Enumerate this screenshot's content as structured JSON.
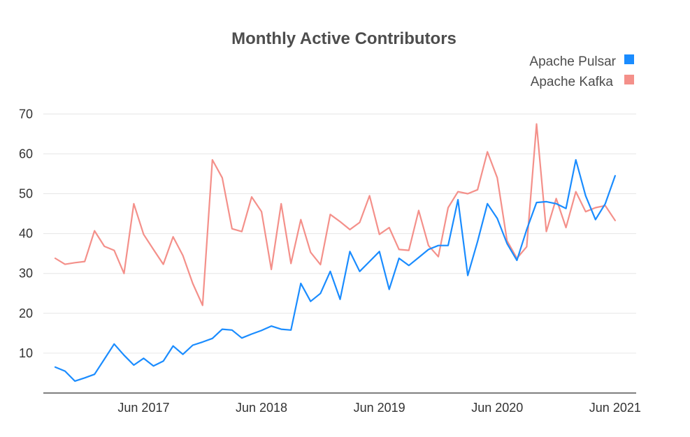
{
  "chart_data": {
    "type": "line",
    "title": "Monthly Active Contributors",
    "xlabel": "",
    "ylabel": "",
    "ylim": [
      0,
      70
    ],
    "yticks": [
      10,
      20,
      30,
      40,
      50,
      60,
      70
    ],
    "x_tick_labels": [
      "Jun 2017",
      "Jun 2018",
      "Jun 2019",
      "Jun 2020",
      "Jun 2021"
    ],
    "grid": true,
    "legend_position": "top-right",
    "x": [
      "2016-09",
      "2016-10",
      "2016-11",
      "2016-12",
      "2017-01",
      "2017-02",
      "2017-03",
      "2017-04",
      "2017-05",
      "2017-06",
      "2017-07",
      "2017-08",
      "2017-09",
      "2017-10",
      "2017-11",
      "2017-12",
      "2018-01",
      "2018-02",
      "2018-03",
      "2018-04",
      "2018-05",
      "2018-06",
      "2018-07",
      "2018-08",
      "2018-09",
      "2018-10",
      "2018-11",
      "2018-12",
      "2019-01",
      "2019-02",
      "2019-03",
      "2019-04",
      "2019-05",
      "2019-06",
      "2019-07",
      "2019-08",
      "2019-09",
      "2019-10",
      "2019-11",
      "2019-12",
      "2020-01",
      "2020-02",
      "2020-03",
      "2020-04",
      "2020-05",
      "2020-06",
      "2020-07",
      "2020-08",
      "2020-09",
      "2020-10",
      "2020-11",
      "2020-12",
      "2021-01",
      "2021-02",
      "2021-03",
      "2021-04",
      "2021-05",
      "2021-06"
    ],
    "series": [
      {
        "name": "Apache Pulsar",
        "color": "#1a8cff",
        "values": [
          6.5,
          5.5,
          3,
          3.8,
          4.7,
          8.5,
          12.3,
          9.5,
          7,
          8.7,
          6.8,
          8,
          11.8,
          9.7,
          12,
          12.8,
          13.7,
          16,
          15.8,
          13.8,
          14.8,
          15.7,
          16.8,
          16,
          15.8,
          27.5,
          23,
          25,
          30.5,
          23.5,
          35.5,
          30.5,
          33,
          35.5,
          26,
          33.8,
          32,
          34,
          36,
          37,
          37,
          48.5,
          29.5,
          38,
          47.5,
          43.8,
          37.5,
          33.3,
          41,
          47.8,
          48,
          47.5,
          46.3,
          58.5,
          49.5,
          43.5,
          47.5,
          54.5
        ]
      },
      {
        "name": "Apache Kafka",
        "color": "#f4908a",
        "values": [
          33.8,
          32.3,
          32.7,
          33,
          40.7,
          36.8,
          35.8,
          30,
          47.5,
          39.8,
          36,
          32.3,
          39.2,
          34.5,
          27.5,
          22,
          58.5,
          54,
          41.2,
          40.5,
          49.2,
          45.5,
          31,
          47.5,
          32.5,
          43.5,
          35.3,
          32.2,
          44.8,
          43,
          41,
          42.8,
          49.5,
          39.8,
          41.5,
          36,
          35.8,
          45.8,
          37,
          34.2,
          46.5,
          50.5,
          50,
          51,
          60.5,
          54,
          38.2,
          33.8,
          36.7,
          67.5,
          40.5,
          48.8,
          41.5,
          50.5,
          45.5,
          46.5,
          47,
          43.3
        ]
      }
    ]
  }
}
